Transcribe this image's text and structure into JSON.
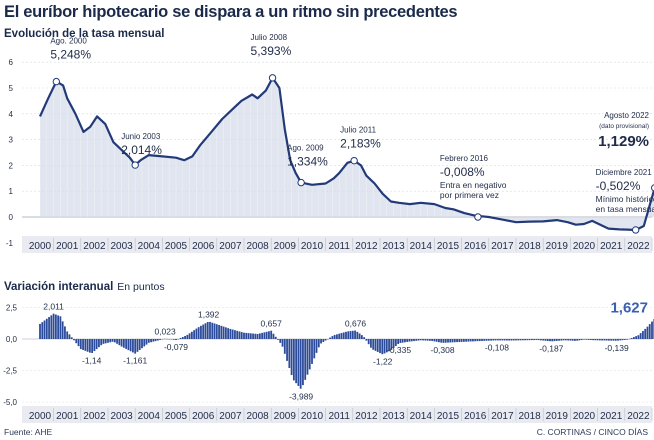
{
  "title": "El euríbor hipotecario se dispara a un ritmo sin precedentes",
  "source": "Fuente: AHE",
  "credit": "C. CORTINAS / CINCO DÍAS",
  "colors": {
    "line": "#233a78",
    "area": "#d6dcea",
    "bar": "#2b4a9a",
    "text": "#1f2b48",
    "grid": "#d8dbe3"
  },
  "chart_data": [
    {
      "type": "area",
      "title": "Evolución de la tasa mensual",
      "ylim": [
        -1,
        6
      ],
      "yticks": [
        "-1",
        "0",
        "1",
        "2",
        "3",
        "4",
        "5",
        "6"
      ],
      "years": [
        "2000",
        "2001",
        "2002",
        "2003",
        "2004",
        "2005",
        "2006",
        "2007",
        "2008",
        "2009",
        "2010",
        "2011",
        "2012",
        "2013",
        "2014",
        "2015",
        "2016",
        "2017",
        "2018",
        "2019",
        "2020",
        "2021",
        "2022"
      ],
      "x": [
        2000.0,
        2000.3,
        2000.6,
        2000.85,
        2001.0,
        2001.3,
        2001.6,
        2001.85,
        2002.1,
        2002.4,
        2002.7,
        2003.0,
        2003.3,
        2003.5,
        2003.7,
        2004.0,
        2004.5,
        2005.0,
        2005.3,
        2005.6,
        2005.9,
        2006.3,
        2006.7,
        2007.0,
        2007.4,
        2007.8,
        2008.0,
        2008.3,
        2008.55,
        2008.8,
        2009.0,
        2009.2,
        2009.4,
        2009.6,
        2010.0,
        2010.5,
        2010.8,
        2011.0,
        2011.3,
        2011.55,
        2011.8,
        2012.0,
        2012.3,
        2012.6,
        2012.9,
        2013.2,
        2013.6,
        2014.0,
        2014.5,
        2014.9,
        2015.2,
        2015.6,
        2016.0,
        2016.5,
        2017.0,
        2017.5,
        2018.0,
        2018.5,
        2019.0,
        2019.4,
        2019.7,
        2020.0,
        2020.3,
        2020.6,
        2020.9,
        2021.3,
        2021.6,
        2021.9,
        2022.2,
        2022.4,
        2022.6
      ],
      "y": [
        3.9,
        4.6,
        5.248,
        5.1,
        4.6,
        4.0,
        3.3,
        3.5,
        3.9,
        3.6,
        2.9,
        2.6,
        2.3,
        2.014,
        2.2,
        2.4,
        2.35,
        2.3,
        2.2,
        2.35,
        2.8,
        3.3,
        3.8,
        4.1,
        4.5,
        4.75,
        4.6,
        4.9,
        5.393,
        5.0,
        3.4,
        2.2,
        1.7,
        1.334,
        1.25,
        1.3,
        1.5,
        1.7,
        2.1,
        2.183,
        2.0,
        1.6,
        1.3,
        0.9,
        0.6,
        0.55,
        0.5,
        0.55,
        0.5,
        0.35,
        0.3,
        0.15,
        0.05,
        0.0,
        -0.1,
        -0.2,
        -0.18,
        -0.17,
        -0.12,
        -0.2,
        -0.3,
        -0.27,
        -0.15,
        -0.3,
        -0.45,
        -0.48,
        -0.49,
        -0.502,
        -0.35,
        0.4,
        1.129
      ],
      "annotations": [
        {
          "x": 2000.6,
          "y": 5.248,
          "date": "Ago. 2000",
          "value": "5,248%"
        },
        {
          "x": 2003.5,
          "y": 2.014,
          "date": "Junio 2003",
          "value": "2,014%"
        },
        {
          "x": 2008.55,
          "y": 5.393,
          "date": "Julio 2008",
          "value": "5,393%"
        },
        {
          "x": 2009.6,
          "y": 1.334,
          "date": "Ago. 2009",
          "value": "1,334%"
        },
        {
          "x": 2011.55,
          "y": 2.183,
          "date": "Julio 2011",
          "value": "2,183%"
        },
        {
          "x": 2016.1,
          "y": 0.0,
          "date": "Febrero 2016",
          "value": "-0,008%",
          "note1": "Entra en negativo",
          "note2": "por primera vez"
        },
        {
          "x": 2021.9,
          "y": -0.502,
          "date": "Diciembre 2021",
          "value": "-0,502%",
          "note1": "Mínimo histórico",
          "note2": "en tasa mensual"
        },
        {
          "x": 2022.6,
          "y": 1.129,
          "date": "Agosto 2022",
          "sub": "(dato provisional)",
          "value": "1,129%"
        }
      ]
    },
    {
      "type": "bar",
      "title": "Variación interanual",
      "unit": "En puntos",
      "ylim": [
        -5,
        2.5
      ],
      "yticks": [
        "2,5",
        "0,0",
        "-2,5",
        "-5,0"
      ],
      "x": [
        2000.0,
        2000.5,
        2000.75,
        2001.0,
        2001.5,
        2001.9,
        2002.3,
        2002.7,
        2003.0,
        2003.5,
        2004.0,
        2004.6,
        2005.0,
        2005.4,
        2005.8,
        2006.2,
        2006.6,
        2007.0,
        2007.5,
        2008.0,
        2008.5,
        2008.9,
        2009.3,
        2009.6,
        2009.9,
        2010.3,
        2010.8,
        2011.3,
        2011.6,
        2011.9,
        2012.2,
        2012.6,
        2012.9,
        2013.2,
        2013.6,
        2014.0,
        2014.4,
        2014.8,
        2015.3,
        2015.8,
        2016.3,
        2016.8,
        2017.3,
        2017.8,
        2018.3,
        2018.8,
        2019.3,
        2019.7,
        2020.0,
        2020.4,
        2020.8,
        2021.2,
        2021.6,
        2022.0,
        2022.3,
        2022.6
      ],
      "y": [
        1.2,
        2.011,
        1.8,
        0.6,
        -0.8,
        -1.14,
        -0.4,
        -0.2,
        -0.6,
        -1.161,
        -0.3,
        0.023,
        -0.079,
        0.3,
        0.9,
        1.392,
        1.1,
        0.8,
        0.5,
        0.4,
        0.657,
        -0.5,
        -3.2,
        -3.989,
        -2.5,
        -0.4,
        0.3,
        0.6,
        0.676,
        0.2,
        -0.8,
        -1.22,
        -0.9,
        -0.335,
        -0.2,
        -0.1,
        -0.15,
        -0.308,
        -0.25,
        -0.2,
        -0.15,
        -0.108,
        -0.12,
        -0.1,
        -0.08,
        -0.187,
        -0.1,
        -0.15,
        -0.05,
        -0.1,
        -0.12,
        -0.139,
        -0.05,
        0.3,
        0.9,
        1.627
      ],
      "labels": [
        {
          "x": 2000.5,
          "y": 2.011,
          "text": "2,011"
        },
        {
          "x": 2001.9,
          "y": -1.14,
          "text": "-1,14"
        },
        {
          "x": 2003.5,
          "y": -1.161,
          "text": "-1,161"
        },
        {
          "x": 2004.6,
          "y": 0.023,
          "text": "0,023"
        },
        {
          "x": 2005.0,
          "y": -0.079,
          "text": "-0,079"
        },
        {
          "x": 2006.2,
          "y": 1.392,
          "text": "1,392"
        },
        {
          "x": 2008.5,
          "y": 0.657,
          "text": "0,657"
        },
        {
          "x": 2009.6,
          "y": -3.989,
          "text": "-3,989"
        },
        {
          "x": 2011.6,
          "y": 0.676,
          "text": "0,676"
        },
        {
          "x": 2012.6,
          "y": -1.22,
          "text": "-1,22"
        },
        {
          "x": 2013.2,
          "y": -0.335,
          "text": "-0,335"
        },
        {
          "x": 2014.8,
          "y": -0.308,
          "text": "-0,308"
        },
        {
          "x": 2016.8,
          "y": -0.108,
          "text": "-0,108"
        },
        {
          "x": 2018.8,
          "y": -0.187,
          "text": "-0,187"
        },
        {
          "x": 2021.2,
          "y": -0.139,
          "text": "-0,139"
        },
        {
          "x": 2022.6,
          "y": 1.627,
          "text": "1,627"
        }
      ]
    }
  ]
}
